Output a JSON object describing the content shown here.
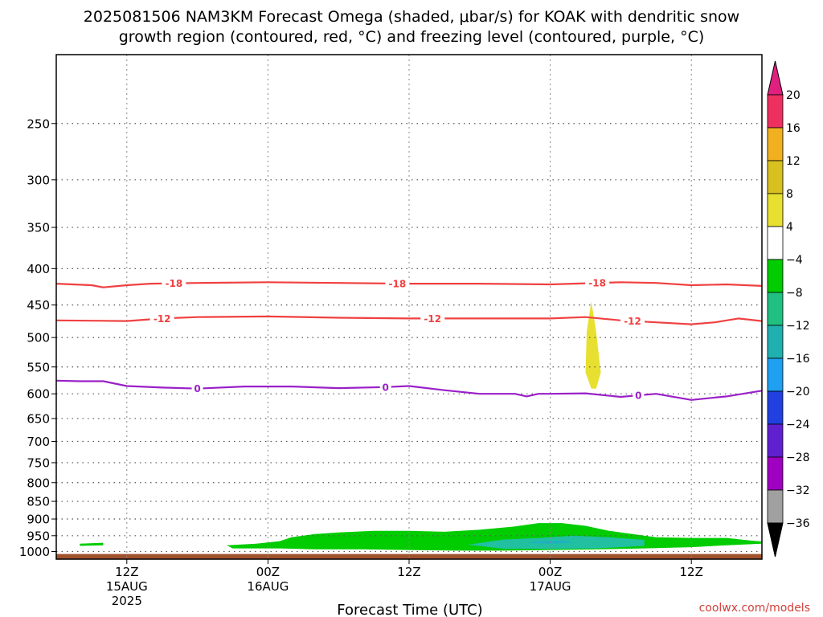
{
  "chart_data": {
    "type": "heatmap",
    "title": {
      "line1": "2025081506 NAM3KM Forecast Omega (shaded, μbar/s) for KOAK with dendritic snow",
      "line2": "growth region (contoured, red, °C) and freezing level (contoured, purple, °C)"
    },
    "xlabel": "Forecast Time (UTC)",
    "credit": "coolwx.com/models",
    "x_range_hours": [
      0,
      60
    ],
    "y_axis": {
      "scale": "log-pressure",
      "range": [
        200,
        1025
      ],
      "ticks": [
        250,
        300,
        350,
        400,
        450,
        500,
        550,
        600,
        650,
        700,
        750,
        800,
        850,
        900,
        950,
        1000
      ]
    },
    "x_ticks": [
      {
        "hour": 6,
        "lines": [
          "12Z",
          "15AUG",
          "2025"
        ]
      },
      {
        "hour": 18,
        "lines": [
          "00Z",
          "16AUG"
        ]
      },
      {
        "hour": 30,
        "lines": [
          "12Z"
        ]
      },
      {
        "hour": 42,
        "lines": [
          "00Z",
          "17AUG"
        ]
      },
      {
        "hour": 54,
        "lines": [
          "12Z"
        ]
      }
    ],
    "grid": true,
    "colorbar": {
      "labels": [
        "20",
        "16",
        "12",
        "8",
        "4",
        "−4",
        "−8",
        "−12",
        "−16",
        "−20",
        "−24",
        "−28",
        "−32",
        "−36"
      ],
      "colors": [
        "#ee3060",
        "#f0b020",
        "#d8c020",
        "#e8e030",
        "#ffffff",
        "#00cc00",
        "#20c080",
        "#20b0b0",
        "#20a0f0",
        "#2040e0",
        "#6020d0",
        "#a000c0",
        "#a0a0a0"
      ],
      "top_arrow_color": "#e0207f",
      "bottom_arrow_color": "#000000"
    },
    "contours": [
      {
        "name": "-18",
        "color": "#f04040",
        "points": [
          [
            0,
            420
          ],
          [
            3,
            422
          ],
          [
            4,
            425
          ],
          [
            6,
            422
          ],
          [
            8,
            420
          ],
          [
            12,
            419
          ],
          [
            18,
            418
          ],
          [
            24,
            419
          ],
          [
            30,
            420
          ],
          [
            36,
            420
          ],
          [
            42,
            421
          ],
          [
            48,
            418
          ],
          [
            51,
            419
          ],
          [
            54,
            422
          ],
          [
            57,
            421
          ],
          [
            60,
            423
          ]
        ],
        "labels": [
          {
            "x": 10,
            "text": "-18"
          },
          {
            "x": 29,
            "text": "-18"
          },
          {
            "x": 46,
            "text": "-18"
          }
        ]
      },
      {
        "name": "-12",
        "color": "#f04040",
        "points": [
          [
            0,
            473
          ],
          [
            6,
            474
          ],
          [
            9,
            470
          ],
          [
            12,
            468
          ],
          [
            18,
            467
          ],
          [
            24,
            469
          ],
          [
            30,
            470
          ],
          [
            36,
            470
          ],
          [
            42,
            470
          ],
          [
            45,
            468
          ],
          [
            48,
            473
          ],
          [
            51,
            476
          ],
          [
            54,
            479
          ],
          [
            56,
            476
          ],
          [
            58,
            470
          ],
          [
            60,
            474
          ]
        ],
        "labels": [
          {
            "x": 9,
            "text": "-12"
          },
          {
            "x": 32,
            "text": "-12"
          },
          {
            "x": 49,
            "text": "-12"
          }
        ]
      },
      {
        "name": "0",
        "color": "#9a20c8",
        "points": [
          [
            0,
            575
          ],
          [
            2,
            576
          ],
          [
            4,
            576
          ],
          [
            6,
            585
          ],
          [
            9,
            588
          ],
          [
            12,
            590
          ],
          [
            16,
            586
          ],
          [
            20,
            586
          ],
          [
            24,
            589
          ],
          [
            28,
            587
          ],
          [
            30,
            585
          ],
          [
            33,
            593
          ],
          [
            36,
            600
          ],
          [
            39,
            600
          ],
          [
            40,
            605
          ],
          [
            41,
            600
          ],
          [
            42,
            600
          ],
          [
            45,
            599
          ],
          [
            48,
            606
          ],
          [
            51,
            600
          ],
          [
            54,
            612
          ],
          [
            57,
            605
          ],
          [
            60,
            594
          ]
        ],
        "labels": [
          {
            "x": 12,
            "text": "0"
          },
          {
            "x": 28,
            "text": "0"
          },
          {
            "x": 49.5,
            "text": "0"
          }
        ]
      }
    ],
    "shaded_regions": [
      {
        "value_range": "-8 to -4",
        "color": "#00cc00",
        "polygons": [
          [
            [
              19,
              967
            ],
            [
              20,
              955
            ],
            [
              22,
              945
            ],
            [
              24,
              940
            ],
            [
              27,
              935
            ],
            [
              30,
              935
            ],
            [
              33,
              938
            ],
            [
              36,
              932
            ],
            [
              39,
              922
            ],
            [
              41,
              912
            ],
            [
              43,
              912
            ],
            [
              45,
              920
            ],
            [
              47,
              935
            ],
            [
              49,
              945
            ],
            [
              51,
              955
            ],
            [
              54,
              957
            ],
            [
              57,
              957
            ],
            [
              59,
              965
            ],
            [
              60,
              968
            ],
            [
              60,
              975
            ],
            [
              57,
              980
            ],
            [
              54,
              986
            ],
            [
              50,
              990
            ],
            [
              46,
              993
            ],
            [
              42,
              995
            ],
            [
              38,
              997
            ],
            [
              34,
              997
            ],
            [
              30,
              995
            ],
            [
              26,
              993
            ],
            [
              22,
              993
            ],
            [
              19,
              990
            ],
            [
              15,
              990
            ],
            [
              14.5,
              980
            ],
            [
              17,
              975
            ],
            [
              19,
              967
            ]
          ],
          [
            [
              2,
              975
            ],
            [
              4,
              972
            ],
            [
              4,
              980
            ],
            [
              2,
              982
            ],
            [
              2,
              975
            ]
          ]
        ]
      },
      {
        "value_range": "-12 to -8",
        "color": "#20c0a0",
        "polygons": [
          [
            [
              35,
              978
            ],
            [
              38,
              962
            ],
            [
              41,
              957
            ],
            [
              44,
              950
            ],
            [
              47,
              955
            ],
            [
              50,
              963
            ],
            [
              50,
              982
            ],
            [
              46,
              990
            ],
            [
              42,
              992
            ],
            [
              38,
              991
            ],
            [
              35,
              978
            ]
          ]
        ]
      },
      {
        "value_range": "-16 to -12",
        "color": "#20b0c0",
        "polygons": [
          [
            [
              40,
              972
            ],
            [
              41,
              967
            ],
            [
              43,
              965
            ],
            [
              44,
              972
            ],
            [
              42,
              975
            ],
            [
              40,
              972
            ]
          ]
        ]
      },
      {
        "value_range": "4 to 8",
        "color": "#e8e030",
        "polygons": [
          [
            [
              45.5,
              445
            ],
            [
              45.9,
              490
            ],
            [
              46.3,
              560
            ],
            [
              45.9,
              590
            ],
            [
              45.5,
              590
            ],
            [
              45,
              560
            ],
            [
              45.1,
              490
            ],
            [
              45.5,
              445
            ]
          ]
        ]
      }
    ],
    "terrain": {
      "top_pressure": 1008,
      "color": "#a0522d"
    }
  }
}
